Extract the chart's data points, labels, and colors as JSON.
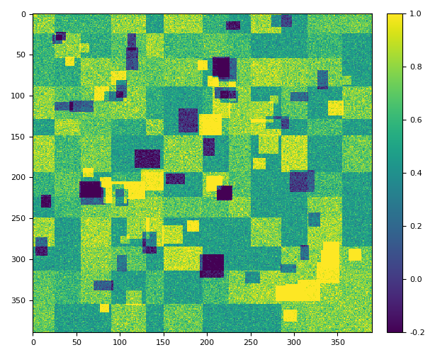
{
  "n": 390,
  "seed": 42,
  "cmap": "viridis",
  "vmin": -0.2,
  "vmax": 1.0,
  "colorbar_ticks": [
    -0.2,
    0.0,
    0.2,
    0.4,
    0.6,
    0.8,
    1.0
  ],
  "colorbar_ticklabels": [
    "-0.2",
    "0.0",
    "0.2",
    "0.4",
    "0.6",
    "0.8",
    "1.0"
  ],
  "xticks": [
    0,
    50,
    100,
    150,
    200,
    250,
    300,
    350
  ],
  "yticks": [
    0,
    50,
    100,
    150,
    200,
    250,
    300,
    350
  ],
  "figsize": [
    6.14,
    5.04
  ],
  "dpi": 100,
  "background_color": "#ffffff"
}
